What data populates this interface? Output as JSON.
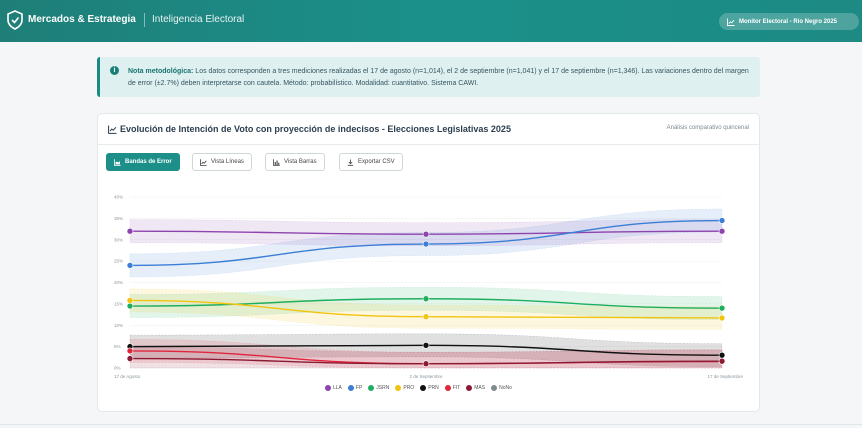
{
  "header": {
    "brand": "Mercados & Estrategia",
    "subtitle": "Inteligencia Electoral",
    "monitor_label": "Monitor Electoral - Río Negro 2025"
  },
  "note": {
    "label": "Nota metodológica:",
    "text": "Los datos corresponden a tres mediciones realizadas el 17 de agosto (n=1,014), el 2 de septiembre (n=1,041) y el 17 de septiembre (n=1,346). Las variaciones dentro del margen de error (±2.7%) deben interpretarse con cautela. Método: probabilístico. Modalidad: cuantitativo. Sistema CAWI."
  },
  "card": {
    "title": "Evolución de Intención de Voto con proyección de indecisos - Elecciones Legislativas 2025",
    "meta": "Análisis comparativo quincenal"
  },
  "buttons": {
    "error_bands": "Bandas de Error",
    "lines_view": "Vista Líneas",
    "bars_view": "Vista Barras",
    "export_csv": "Exportar CSV"
  },
  "chart_data": {
    "type": "line",
    "categories": [
      "17 de Agosto",
      "2 de Septiembre",
      "17 de Septiembre"
    ],
    "ylim": [
      0,
      40
    ],
    "yticks": [
      "0%",
      "5%",
      "10%",
      "15%",
      "20%",
      "25%",
      "30%",
      "35%",
      "40%"
    ],
    "error_margin": 2.7,
    "series": [
      {
        "name": "LLA",
        "color": "#8e44ad",
        "values": [
          32.0,
          31.3,
          32.0
        ]
      },
      {
        "name": "FP",
        "color": "#3a7fd5",
        "values": [
          24.0,
          29.0,
          34.5
        ]
      },
      {
        "name": "JSRN",
        "color": "#1fae5f",
        "values": [
          14.5,
          16.2,
          14.0
        ]
      },
      {
        "name": "PRO",
        "color": "#f1c40f",
        "values": [
          15.8,
          12.0,
          11.7
        ]
      },
      {
        "name": "PRN",
        "color": "#111111",
        "values": [
          5.0,
          5.3,
          3.0
        ]
      },
      {
        "name": "FIT",
        "color": "#e0263d",
        "values": [
          4.0,
          1.0,
          1.5
        ]
      },
      {
        "name": "MAS",
        "color": "#8b1a33",
        "values": [
          2.2,
          1.0,
          1.6
        ]
      },
      {
        "name": "NoNo",
        "color": "#7f8c8d",
        "values": [
          null,
          null,
          null
        ]
      }
    ]
  }
}
